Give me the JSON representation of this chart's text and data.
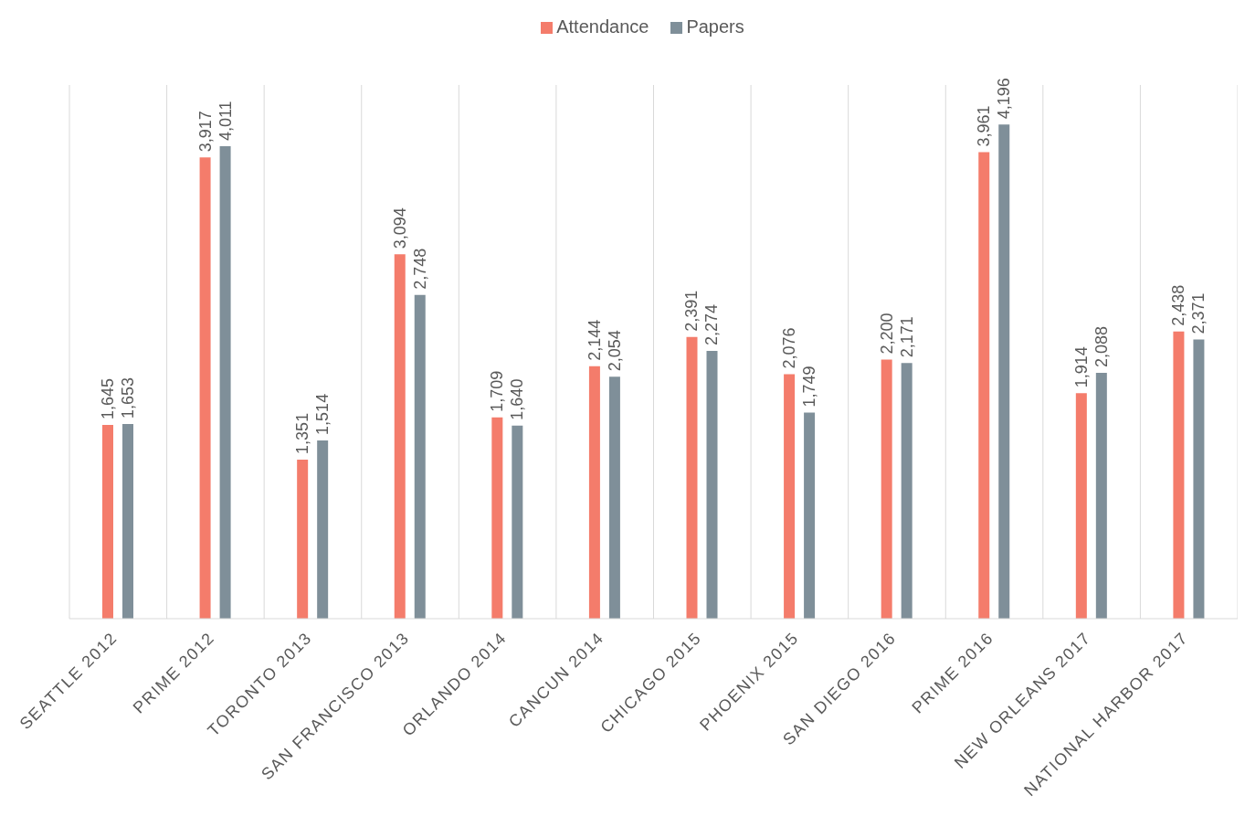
{
  "chart_data": {
    "type": "bar",
    "categories": [
      "SEATTLE 2012",
      "PRIME 2012",
      "TORONTO 2013",
      "SAN FRANCISCO 2013",
      "ORLANDO 2014",
      "CANCUN 2014",
      "CHICAGO 2015",
      "PHOENIX 2015",
      "SAN DIEGO 2016",
      "PRIME 2016",
      "NEW ORLEANS 2017",
      "NATIONAL HARBOR 2017"
    ],
    "series": [
      {
        "name": "Attendance",
        "color": "#f47c6b",
        "values": [
          1645,
          3917,
          1351,
          3094,
          1709,
          2144,
          2391,
          2076,
          2200,
          3961,
          1914,
          2438
        ],
        "value_labels": [
          "1,645",
          "3,917",
          "1,351",
          "3,094",
          "1,709",
          "2,144",
          "2,391",
          "2,076",
          "2,200",
          "3,961",
          "1,914",
          "2,438"
        ]
      },
      {
        "name": "Papers",
        "color": "#7f8f99",
        "values": [
          1653,
          4011,
          1514,
          2748,
          1640,
          2054,
          2274,
          1749,
          2171,
          4196,
          2088,
          2371
        ],
        "value_labels": [
          "1,653",
          "4,011",
          "1,514",
          "2,748",
          "1,640",
          "2,054",
          "2,274",
          "1,749",
          "2,171",
          "4,196",
          "2,088",
          "2,371"
        ]
      }
    ],
    "legend": "top",
    "grid": "x"
  }
}
